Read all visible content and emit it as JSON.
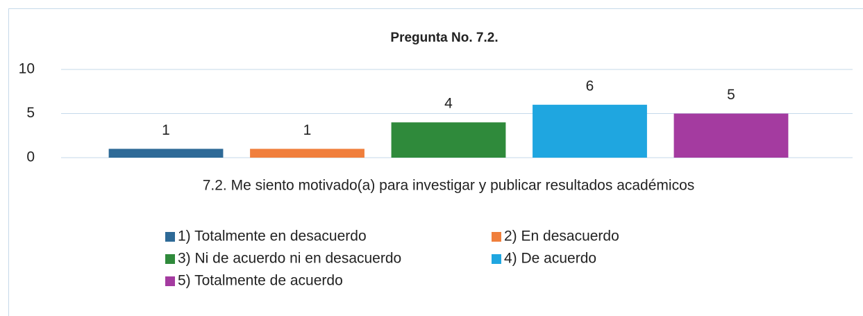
{
  "chart_data": {
    "type": "bar",
    "title": "Pregunta No. 7.2.",
    "categories": [
      "7.2. Me siento motivado(a) para investigar y publicar resultados académicos"
    ],
    "series": [
      {
        "name": "1) Totalmente en desacuerdo",
        "color": "#2e6a97",
        "values": [
          1
        ]
      },
      {
        "name": "2) En desacuerdo",
        "color": "#f07f3c",
        "values": [
          1
        ]
      },
      {
        "name": "3) Ni de acuerdo ni en desacuerdo",
        "color": "#2f8a3b",
        "values": [
          4
        ]
      },
      {
        "name": "4) De acuerdo",
        "color": "#1fa6e0",
        "values": [
          6
        ]
      },
      {
        "name": "5) Totalmente de acuerdo",
        "color": "#a43ba0",
        "values": [
          5
        ]
      }
    ],
    "ylim": [
      0,
      10
    ],
    "yticks": [
      0,
      5,
      10
    ],
    "grid": true
  }
}
